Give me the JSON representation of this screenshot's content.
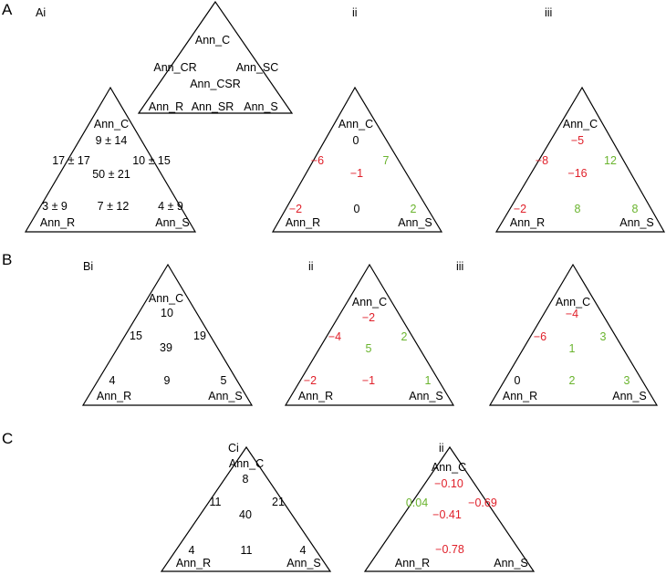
{
  "colors": {
    "black": "#000000",
    "negative": "#e0202a",
    "positive": "#6ab42e"
  },
  "panels": [
    {
      "letter": "A",
      "subpanels": [
        {
          "sublabel": "Ai",
          "type": "schematic",
          "labels": {
            "c": "Ann_C",
            "cr": "Ann_CR",
            "sc": "Ann_SC",
            "csr": "Ann_CSR",
            "r": "Ann_R",
            "sr": "Ann_SR",
            "s": "Ann_S"
          }
        },
        {
          "sublabel": "",
          "type": "values",
          "values": {
            "c": "9 ± 14",
            "cr": "17 ± 17",
            "sc": "10 ± 15",
            "csr": "50 ± 21",
            "r": "3 ± 9",
            "sr": "7 ± 12",
            "s": "4 ± 9"
          }
        },
        {
          "sublabel": "ii",
          "type": "values",
          "values": {
            "c": "0",
            "cr": "−6",
            "sc": "7",
            "csr": "−1",
            "r": "−2",
            "sr": "0",
            "s": "2"
          }
        },
        {
          "sublabel": "iii",
          "type": "values",
          "values": {
            "c": "−5",
            "cr": "−8",
            "sc": "12",
            "csr": "−16",
            "r": "−2",
            "sr": "8",
            "s": "8"
          }
        }
      ]
    },
    {
      "letter": "B",
      "subpanels": [
        {
          "sublabel": "Bi",
          "type": "values",
          "values": {
            "c": "10",
            "cr": "15",
            "sc": "19",
            "csr": "39",
            "r": "4",
            "sr": "9",
            "s": "5"
          }
        },
        {
          "sublabel": "ii",
          "type": "values",
          "values": {
            "c": "−2",
            "cr": "−4",
            "sc": "2",
            "csr": "5",
            "r": "−2",
            "sr": "−1",
            "s": "1"
          }
        },
        {
          "sublabel": "iii",
          "type": "values",
          "values": {
            "c": "−4",
            "cr": "−6",
            "sc": "3",
            "csr": "1",
            "r": "0",
            "sr": "2",
            "s": "3"
          }
        }
      ]
    },
    {
      "letter": "C",
      "subpanels": [
        {
          "sublabel": "Ci",
          "type": "values",
          "values": {
            "c": "8",
            "cr": "11",
            "sc": "21",
            "csr": "40",
            "r": "4",
            "sr": "11",
            "s": "4"
          }
        },
        {
          "sublabel": "ii",
          "type": "values",
          "values": {
            "c": "−0.10",
            "cr": "0.04",
            "sc": "−0.69",
            "csr": "−0.41",
            "sr": "−0.78"
          }
        }
      ]
    }
  ],
  "corner_labels": {
    "top": "Ann_C",
    "left": "Ann_R",
    "right": "Ann_S"
  }
}
